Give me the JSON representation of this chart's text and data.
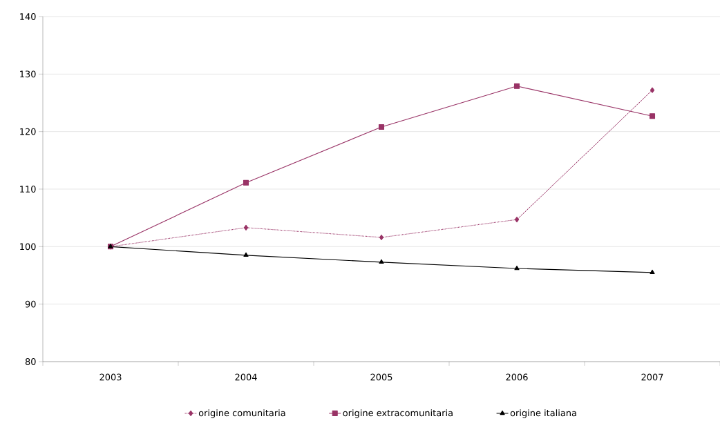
{
  "chart_data": {
    "type": "line",
    "categories": [
      "2003",
      "2004",
      "2005",
      "2006",
      "2007"
    ],
    "series": [
      {
        "name": "origine comunitaria",
        "color": "#993366",
        "marker": "diamond",
        "line_style": "dotted",
        "values": [
          100,
          103.3,
          101.6,
          104.7,
          127.2
        ]
      },
      {
        "name": "origine extracomunitaria",
        "color": "#993366",
        "marker": "square",
        "line_style": "solid",
        "values": [
          100,
          111.1,
          120.8,
          127.9,
          122.7
        ]
      },
      {
        "name": "origine italiana",
        "color": "#000000",
        "marker": "triangle",
        "line_style": "solid",
        "values": [
          100,
          98.5,
          97.3,
          96.2,
          95.5
        ]
      }
    ],
    "ylim": [
      80,
      140
    ],
    "yticks": [
      80,
      90,
      100,
      110,
      120,
      130,
      140
    ],
    "grid": "y",
    "legend": "bottom"
  }
}
